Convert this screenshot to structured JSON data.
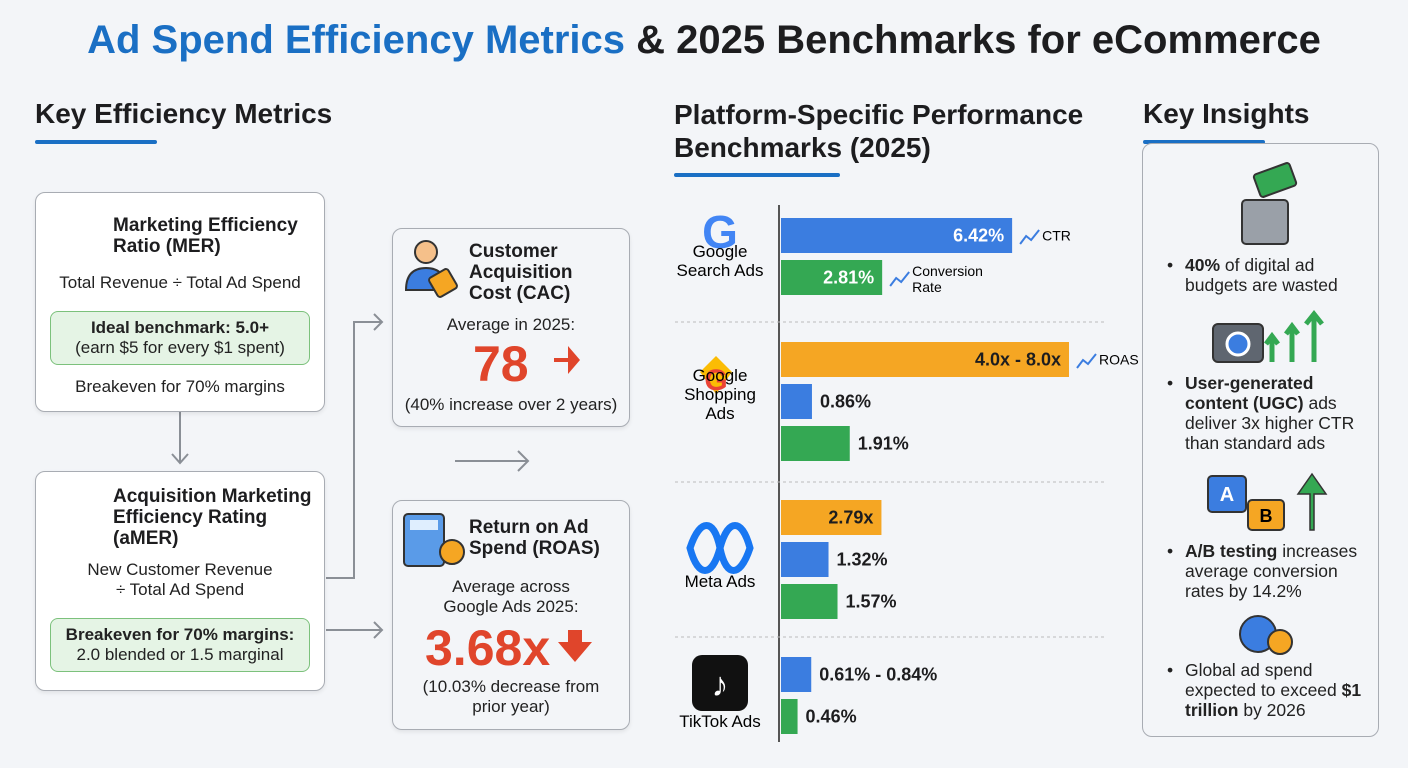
{
  "title": {
    "highlight": "Ad Spend Efficiency Metrics",
    "rest": "& 2025 Benchmarks for eCommerce"
  },
  "metrics": {
    "heading": "Key Efficiency Metrics",
    "mer": {
      "title": [
        "Marketing Efficiency",
        "Ratio (MER)"
      ],
      "formula": [
        "Total Revenue ÷ Total Ad Spend"
      ],
      "box": [
        "Ideal benchmark: 5.0+",
        "(earn $5 for every $1 spent)"
      ],
      "note": "Breakeven for 70% margins"
    },
    "amer": {
      "title": [
        "Acquisition Marketing",
        "Efficiency Rating",
        "(aMER)"
      ],
      "formula": [
        "New Customer Revenue",
        "÷ Total Ad Spend"
      ],
      "box": [
        "Breakeven for 70% margins:",
        "2.0 blended or 1.5 marginal"
      ]
    },
    "cac": {
      "title": [
        "Customer",
        "Acquisition",
        "Cost (CAC)"
      ],
      "caption": [
        "Average in 2025:"
      ],
      "figure": "78",
      "note": [
        "(40% increase over 2 years)"
      ]
    },
    "roas": {
      "title": [
        "Return on Ad",
        "Spend (ROAS)"
      ],
      "caption": [
        "Average across",
        "Google Ads 2025:"
      ],
      "figure": "3.68x",
      "note": [
        "(10.03% decrease from",
        "prior year)"
      ]
    }
  },
  "platforms": {
    "heading": [
      "Platform-Specific Performance",
      "Benchmarks (2025)"
    ],
    "items": [
      {
        "name": [
          "Google",
          "Search Ads"
        ],
        "bars": [
          {
            "values": [
              6.42
            ],
            "label": "6.42%",
            "metric": "CTR",
            "color": "#3b7de0"
          },
          {
            "values": [
              2.81
            ],
            "label": "2.81%",
            "metric": "Conversion Rate",
            "color": "#34a853"
          }
        ]
      },
      {
        "name": [
          "Google",
          "Shopping",
          "Ads"
        ],
        "bars": [
          {
            "values": [
              4.0,
              8.0
            ],
            "label": "4.0x - 8.0x",
            "metric": "ROAS",
            "color": "#f5a623"
          },
          {
            "values": [
              0.86
            ],
            "label": "0.86%",
            "color": "#3b7de0"
          },
          {
            "values": [
              1.91
            ],
            "label": "1.91%",
            "color": "#34a853"
          }
        ]
      },
      {
        "name": [
          "Meta Ads"
        ],
        "bars": [
          {
            "values": [
              2.79
            ],
            "label": "2.79x",
            "color": "#f5a623"
          },
          {
            "values": [
              1.32
            ],
            "label": "1.32%",
            "color": "#3b7de0"
          },
          {
            "values": [
              1.57
            ],
            "label": "1.57%",
            "color": "#34a853"
          }
        ]
      },
      {
        "name": [
          "TikTok Ads"
        ],
        "bars": [
          {
            "values": [
              0.61,
              0.84
            ],
            "label": "0.61% - 0.84%",
            "color": "#3b7de0"
          },
          {
            "values": [
              0.46
            ],
            "label": "0.46%",
            "color": "#34a853"
          }
        ]
      }
    ]
  },
  "insights": {
    "heading": "Key Insights",
    "items": [
      {
        "bold": "40%",
        "text": " of digital ad budgets are wasted"
      },
      {
        "bold": "User-generated content (UGC)",
        "text": " ads deliver 3x higher CTR than standard ads"
      },
      {
        "bold": "A/B testing",
        "text": " increases average conversion rates by 14.2%"
      },
      {
        "pre": "Global ad spend expected to exceed ",
        "bold": "$1 trillion",
        "text": " by 2026"
      }
    ]
  }
}
